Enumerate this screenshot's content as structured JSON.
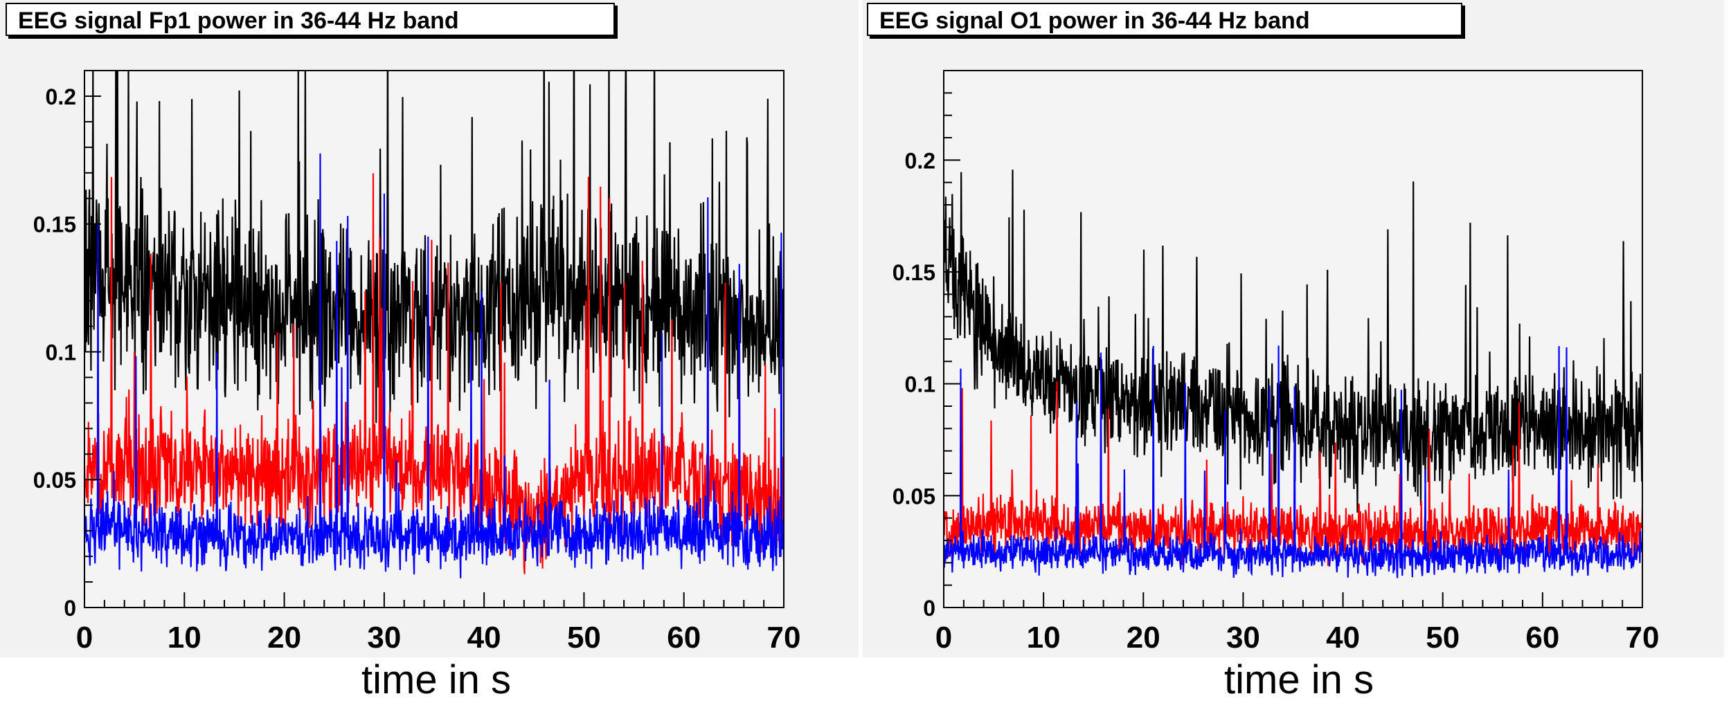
{
  "chart_data": [
    {
      "type": "line",
      "title": "EEG signal Fp1  power in 36-44 Hz band",
      "xlabel": "time in s",
      "ylabel": "",
      "xlim": [
        0,
        70
      ],
      "ylim": [
        0,
        0.21
      ],
      "xticks": [
        0,
        10,
        20,
        30,
        40,
        50,
        60,
        70
      ],
      "yticks": [
        0,
        0.05,
        0.1,
        0.15,
        0.2
      ],
      "ytick_labels": [
        "0",
        "0.05",
        "0.1",
        "0.15",
        "0.2"
      ],
      "grid": false,
      "series": [
        {
          "color": "#000000",
          "base": 0.115,
          "noise": 0.035,
          "spike_prob": 0.05,
          "spike_max": 0.11,
          "envelope": [
            [
              0,
              0.135
            ],
            [
              5,
              0.125
            ],
            [
              10,
              0.12
            ],
            [
              20,
              0.115
            ],
            [
              30,
              0.11
            ],
            [
              40,
              0.12
            ],
            [
              50,
              0.12
            ],
            [
              60,
              0.115
            ],
            [
              70,
              0.11
            ]
          ]
        },
        {
          "color": "#ff0000",
          "base": 0.05,
          "noise": 0.02,
          "spike_prob": 0.03,
          "spike_max": 0.12,
          "envelope": [
            [
              0,
              0.055
            ],
            [
              10,
              0.055
            ],
            [
              20,
              0.05
            ],
            [
              30,
              0.06
            ],
            [
              40,
              0.05
            ],
            [
              45,
              0.035
            ],
            [
              50,
              0.05
            ],
            [
              60,
              0.05
            ],
            [
              70,
              0.04
            ]
          ]
        },
        {
          "color": "#0000ff",
          "base": 0.028,
          "noise": 0.012,
          "spike_prob": 0.012,
          "spike_max": 0.16,
          "envelope": [
            [
              0,
              0.03
            ],
            [
              10,
              0.028
            ],
            [
              20,
              0.028
            ],
            [
              30,
              0.027
            ],
            [
              40,
              0.028
            ],
            [
              50,
              0.03
            ],
            [
              60,
              0.03
            ],
            [
              70,
              0.028
            ]
          ]
        }
      ]
    },
    {
      "type": "line",
      "title": "EEG signal O1  power in 36-44 Hz band",
      "xlabel": "time in s",
      "ylabel": "",
      "xlim": [
        0,
        70
      ],
      "ylim": [
        0,
        0.24
      ],
      "xticks": [
        0,
        10,
        20,
        30,
        40,
        50,
        60,
        70
      ],
      "yticks": [
        0,
        0.05,
        0.1,
        0.15,
        0.2
      ],
      "ytick_labels": [
        "0",
        "0.05",
        "0.1",
        "0.15",
        "0.2"
      ],
      "grid": false,
      "series": [
        {
          "color": "#000000",
          "base": 0.09,
          "noise": 0.025,
          "spike_prob": 0.03,
          "spike_max": 0.09,
          "envelope": [
            [
              0,
              0.16
            ],
            [
              3,
              0.13
            ],
            [
              6,
              0.11
            ],
            [
              10,
              0.1
            ],
            [
              20,
              0.09
            ],
            [
              30,
              0.085
            ],
            [
              40,
              0.08
            ],
            [
              50,
              0.075
            ],
            [
              60,
              0.08
            ],
            [
              70,
              0.08
            ]
          ]
        },
        {
          "color": "#ff0000",
          "base": 0.035,
          "noise": 0.012,
          "spike_prob": 0.025,
          "spike_max": 0.06,
          "envelope": [
            [
              0,
              0.035
            ],
            [
              10,
              0.038
            ],
            [
              20,
              0.035
            ],
            [
              30,
              0.035
            ],
            [
              40,
              0.033
            ],
            [
              50,
              0.033
            ],
            [
              60,
              0.035
            ],
            [
              70,
              0.035
            ]
          ]
        },
        {
          "color": "#0000ff",
          "base": 0.024,
          "noise": 0.008,
          "spike_prob": 0.01,
          "spike_max": 0.1,
          "envelope": [
            [
              0,
              0.025
            ],
            [
              10,
              0.025
            ],
            [
              20,
              0.024
            ],
            [
              30,
              0.024
            ],
            [
              40,
              0.023
            ],
            [
              50,
              0.023
            ],
            [
              60,
              0.024
            ],
            [
              70,
              0.024
            ]
          ]
        }
      ]
    }
  ]
}
